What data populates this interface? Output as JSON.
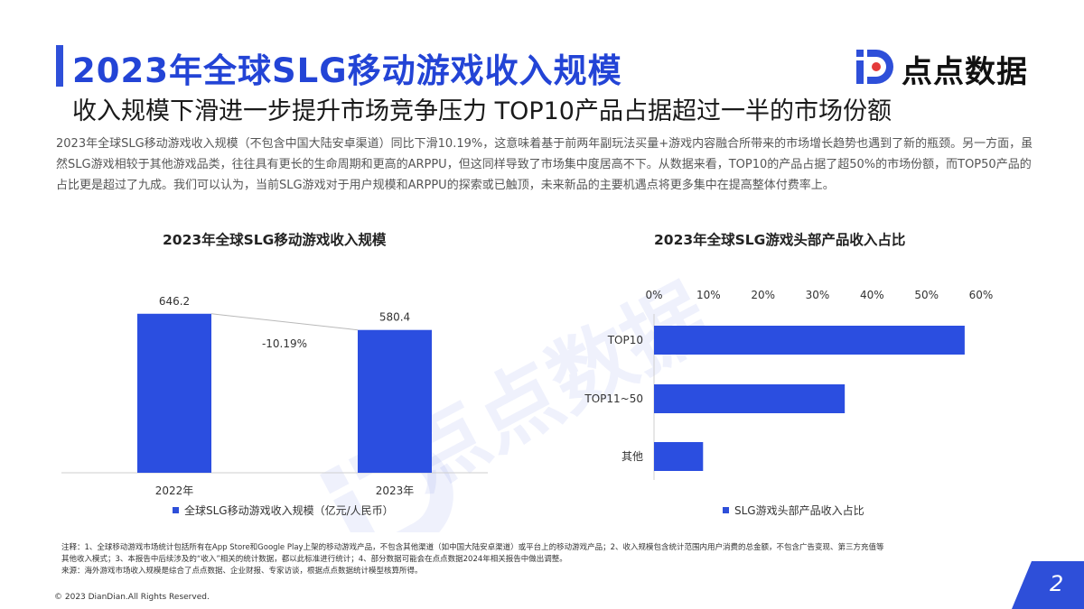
{
  "header": {
    "title": "2023年全球SLG移动游戏收入规模",
    "subtitle": "收入规模下滑进一步提升市场竞争压力 TOP10产品占据超过一半的市场份额",
    "logo_text": "点点数据"
  },
  "intro_text": "2023年全球SLG移动游戏收入规模（不包含中国大陆安卓渠道）同比下滑10.19%，这意味着基于前两年副玩法买量+游戏内容融合所带来的市场增长趋势也遇到了新的瓶颈。另一方面，虽然SLG游戏相较于其他游戏品类，往往具有更长的生命周期和更高的ARPPU，但这同样导致了市场集中度居高不下。从数据来看，TOP10的产品占据了超50%的市场份额，而TOP50产品的占比更是超过了九成。我们可以认为，当前SLG游戏对于用户规模和ARPPU的探索或已触顶，未来新品的主要机遇点将更多集中在提高整体付费率上。",
  "colors": {
    "accent": "#2e4fd9",
    "bar": "#2b4ee0",
    "title": "#2344d6"
  },
  "chart_data": [
    {
      "type": "bar",
      "title": "2023年全球SLG移动游戏收入规模",
      "categories": [
        "2022年",
        "2023年"
      ],
      "series": [
        {
          "name": "全球SLG移动游戏收入规模（亿元/人民币）",
          "values": [
            646.2,
            580.4
          ]
        }
      ],
      "data_labels": [
        "646.2",
        "580.4"
      ],
      "annotation": "-10.19%",
      "ylim": [
        0,
        660
      ],
      "grid": false,
      "legend": "bottom"
    },
    {
      "type": "bar",
      "orientation": "horizontal",
      "title": "2023年全球SLG游戏头部产品收入占比",
      "categories": [
        "TOP10",
        "TOP11~50",
        "其他"
      ],
      "series": [
        {
          "name": "SLG游戏头部产品收入占比",
          "values": [
            57,
            35,
            9
          ]
        }
      ],
      "xlim": [
        0,
        60
      ],
      "xticks": [
        "0%",
        "10%",
        "20%",
        "30%",
        "40%",
        "50%",
        "60%"
      ],
      "grid": false,
      "legend": "bottom"
    }
  ],
  "footer": {
    "note_line1": "注释：1、全球移动游戏市场统计包括所有在App Store和Google Play上架的移动游戏产品，不包含其他渠道（如中国大陆安卓渠道）或平台上的移动游戏产品；2、收入规模包含统计范围内用户消费的总金额，不包含广告变现、第三方充值等",
    "note_line2": "其他收入模式；3、本报告中后续涉及的“收入”相关的统计数据，都以此标准进行统计；4、部分数据可能会在点点数据2024年相关报告中做出调整。",
    "source": "来源：海外游戏市场收入规模是综合了点点数据、企业财报、专家访谈，根据点点数据统计模型核算所得。",
    "copyright": "© 2023 DianDian.All Rights Reserved.",
    "page_number": "2"
  }
}
